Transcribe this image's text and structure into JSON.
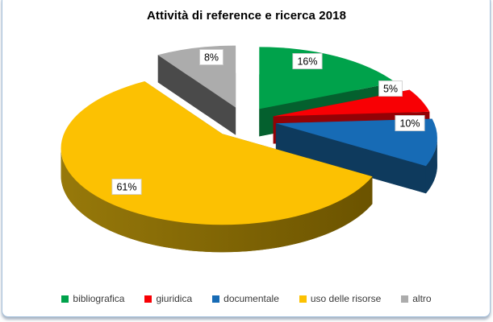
{
  "frame": {
    "background": "#FFFFFF",
    "border_color": "#A6C1DC"
  },
  "chart_data": {
    "type": "pie",
    "style": "3d-exploded",
    "title": "Attività di reference e ricerca 2018",
    "categories": [
      "bibliografica",
      "giuridica",
      "documentale",
      "uso delle risorse",
      "altro"
    ],
    "values": [
      16,
      5,
      10,
      61,
      8
    ],
    "labels": [
      "16%",
      "5%",
      "10%",
      "61%",
      "8%"
    ],
    "unit": "%",
    "colors": [
      "#00A24B",
      "#F80004",
      "#176BB5",
      "#FCC102",
      "#ACACAC"
    ],
    "side_colors": [
      "#04602E",
      "#930206",
      "#0E3A5D",
      "#8A6B00",
      "#4A4A4A"
    ],
    "gold_side_gradient": {
      "from": "#97790A",
      "to": "#6B5300"
    },
    "title_color": "#000000",
    "label_text_color": "#000000",
    "label_box_fill": "#FFFFFF",
    "label_box_border": "#CFCFCF",
    "legend_text_color": "#3A3A3A",
    "legend_position": "bottom",
    "start_angle_deg": 0,
    "clockwise": true
  }
}
